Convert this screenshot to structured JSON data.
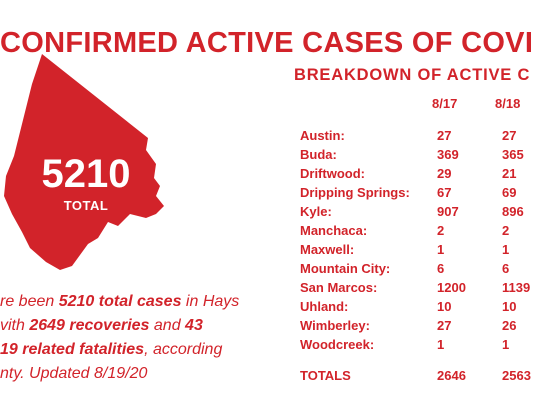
{
  "title": "CONFIRMED ACTIVE CASES OF COVI",
  "breakdown_title": "BREAKDOWN OF ACTIVE C",
  "total": {
    "value": "5210",
    "label": "TOTAL"
  },
  "colors": {
    "accent": "#d2232a",
    "background": "#ffffff",
    "text_on_accent": "#ffffff"
  },
  "blurb": {
    "line1_pre": "re been ",
    "line1_bold": "5210 total cases",
    "line1_post": " in Hays",
    "line2_pre": "vith ",
    "line2_bold1": "2649 recoveries",
    "line2_mid": " and ",
    "line2_bold2": "43",
    "line3_bold": "19 related fatalities",
    "line3_post": ", according",
    "line4": "nty. Updated 8/19/20"
  },
  "table": {
    "dates": [
      "8/17",
      "8/18"
    ],
    "rows": [
      {
        "name": "Austin:",
        "v1": "27",
        "v2": "27"
      },
      {
        "name": "Buda:",
        "v1": "369",
        "v2": "365"
      },
      {
        "name": "Driftwood:",
        "v1": "29",
        "v2": "21"
      },
      {
        "name": "Dripping Springs:",
        "v1": "67",
        "v2": "69"
      },
      {
        "name": "Kyle:",
        "v1": "907",
        "v2": "896"
      },
      {
        "name": "Manchaca:",
        "v1": "2",
        "v2": "2"
      },
      {
        "name": "Maxwell:",
        "v1": "1",
        "v2": "1"
      },
      {
        "name": "Mountain City:",
        "v1": "6",
        "v2": "6"
      },
      {
        "name": "San Marcos:",
        "v1": "1200",
        "v2": "1139"
      },
      {
        "name": "Uhland:",
        "v1": "10",
        "v2": "10"
      },
      {
        "name": "Wimberley:",
        "v1": "27",
        "v2": "26"
      },
      {
        "name": "Woodcreek:",
        "v1": "1",
        "v2": "1"
      }
    ],
    "totals": {
      "name": "TOTALS",
      "v1": "2646",
      "v2": "2563"
    }
  }
}
